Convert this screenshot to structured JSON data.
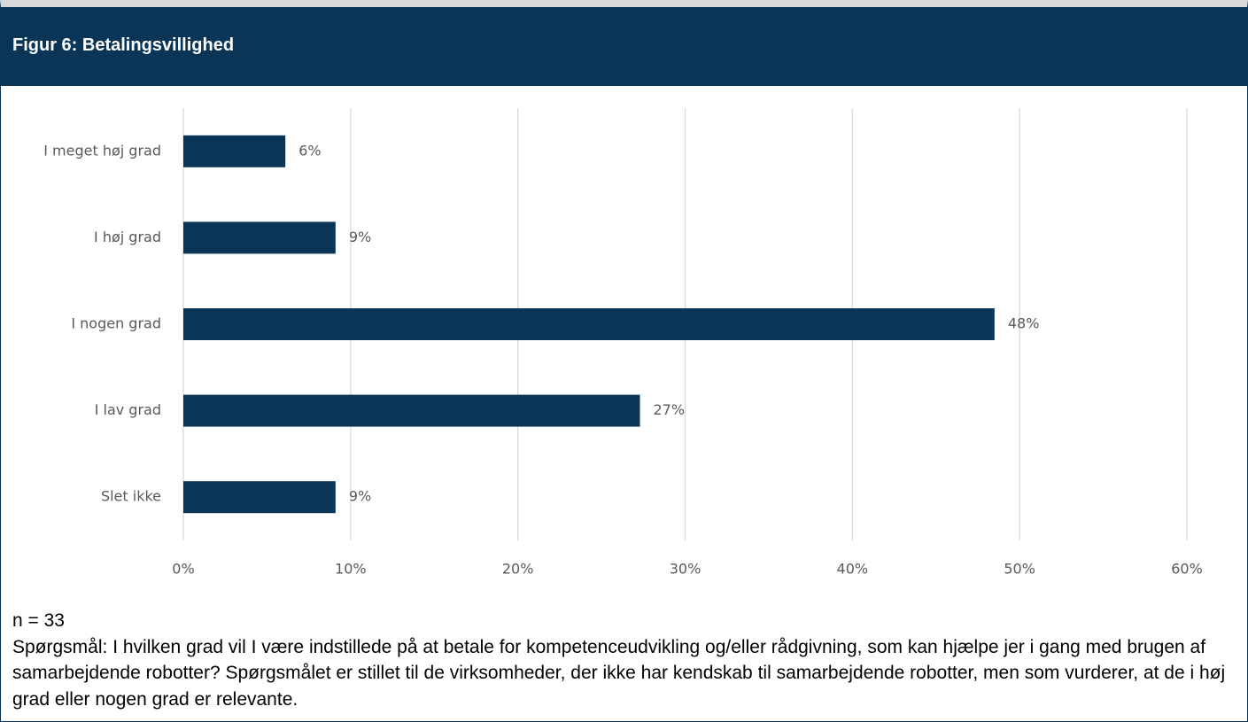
{
  "chart_data": {
    "type": "barh",
    "title": "Figur 6: Betalingsvillighed",
    "categories": [
      "I meget høj grad",
      "I høj grad",
      "I nogen grad",
      "I lav grad",
      "Slet ikke"
    ],
    "values": [
      6.1,
      9.1,
      48.5,
      27.3,
      9.1
    ],
    "value_labels": [
      "6%",
      "9%",
      "48%",
      "27%",
      "9%"
    ],
    "color": "#0b3556",
    "xlim": [
      0,
      60
    ],
    "xticks": [
      {
        "value": 0,
        "label": "0%"
      },
      {
        "value": 10,
        "label": "10%"
      },
      {
        "value": 20,
        "label": "20%"
      },
      {
        "value": 30,
        "label": "30%"
      },
      {
        "value": 40,
        "label": "40%"
      },
      {
        "value": 50,
        "label": "50%"
      },
      {
        "value": 60,
        "label": "60%"
      }
    ],
    "grid": true,
    "notes": [
      "n = 33",
      "Spørgsmål: I hvilken grad vil I være indstillede på at betale for kompetenceudvikling og/eller rådgivning, som kan hjælpe jer i gang med brugen af samarbejdende robotter? Spørgsmålet er stillet til de virksomheder, der ikke har kendskab til samarbejdende robotter, men som vurderer, at de i høj grad eller nogen grad er relevante."
    ]
  }
}
